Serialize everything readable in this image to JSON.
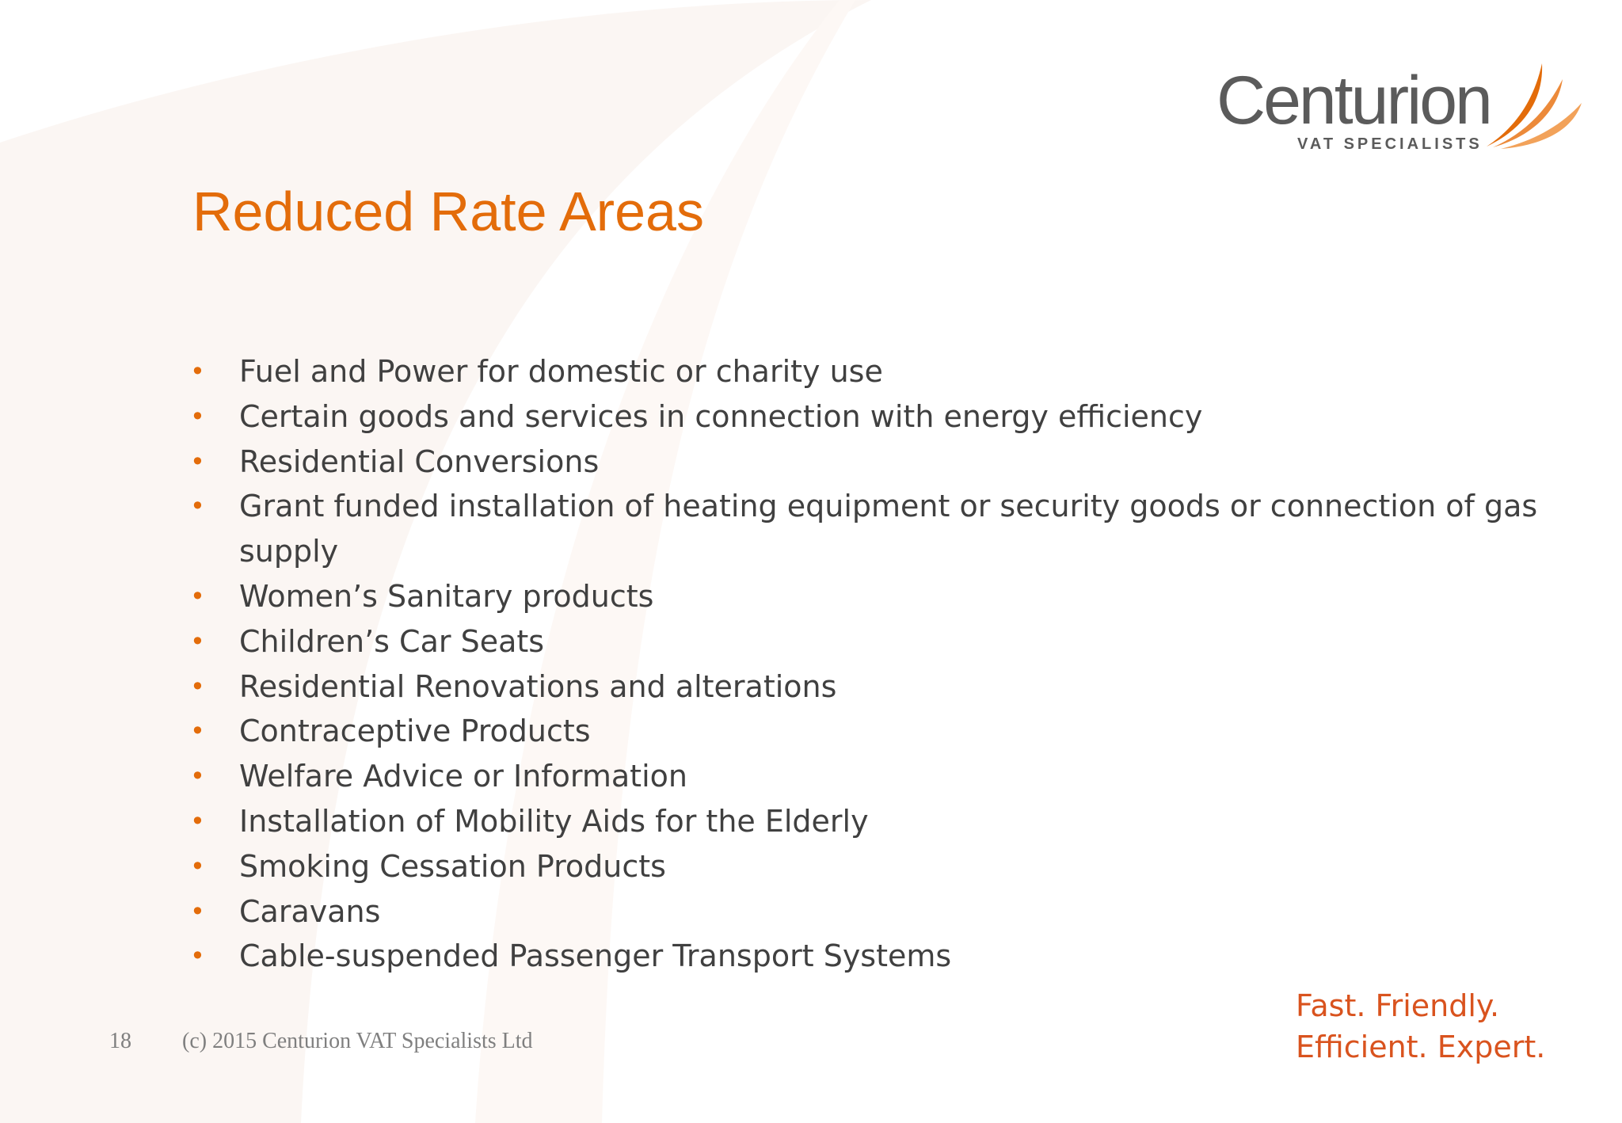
{
  "logo": {
    "wordmark": "Centurion",
    "subtitle": "VAT SPECIALISTS"
  },
  "title": "Reduced Rate Areas",
  "bullets": [
    "Fuel and Power for domestic or charity use",
    "Certain goods and services in connection with energy efficiency",
    "Residential Conversions",
    "Grant funded installation of heating equipment or security goods or connection of gas supply",
    "Women’s Sanitary products",
    "Children’s Car Seats",
    "Residential Renovations and alterations",
    "Contraceptive Products",
    "Welfare Advice or Information",
    "Installation of Mobility Aids for the Elderly",
    "Smoking Cessation Products",
    "Caravans",
    "Cable-suspended Passenger Transport Systems"
  ],
  "footer": {
    "page_number": "18",
    "copyright": "(c) 2015 Centurion VAT Specialists Ltd"
  },
  "tagline": {
    "line1": "Fast. Friendly.",
    "line2": "Efficient. Expert."
  },
  "colors": {
    "accent": "#e36c0a",
    "text": "#404040",
    "logo_gray": "#5b5b5b"
  }
}
